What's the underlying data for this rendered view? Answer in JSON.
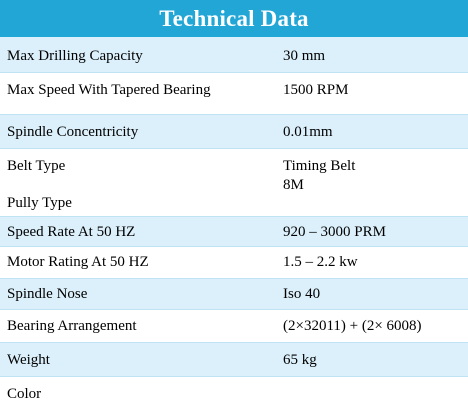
{
  "title": "Technical Data",
  "rows": [
    {
      "label": "Max Drilling Capacity",
      "value": "30 mm"
    },
    {
      "label": "Max Speed With Tapered Bearing",
      "value": "1500 RPM"
    },
    {
      "label": "Spindle Concentricity",
      "value": "0.01mm"
    },
    {
      "label": "Belt Type",
      "value": "Timing Belt",
      "label2": "Pully Type",
      "value2": "8M"
    },
    {
      "label": "Speed Rate At 50 HZ",
      "value": "920 – 3000 PRM"
    },
    {
      "label": "Motor Rating At 50 HZ",
      "value": "1.5 – 2.2 kw"
    },
    {
      "label": "Spindle Nose",
      "value": "Iso 40"
    },
    {
      "label": "Bearing Arrangement",
      "value": "(2×32011) + (2× 6008)"
    },
    {
      "label": "Weight",
      "value": "65 kg"
    },
    {
      "label": "Color",
      "value": ""
    }
  ]
}
